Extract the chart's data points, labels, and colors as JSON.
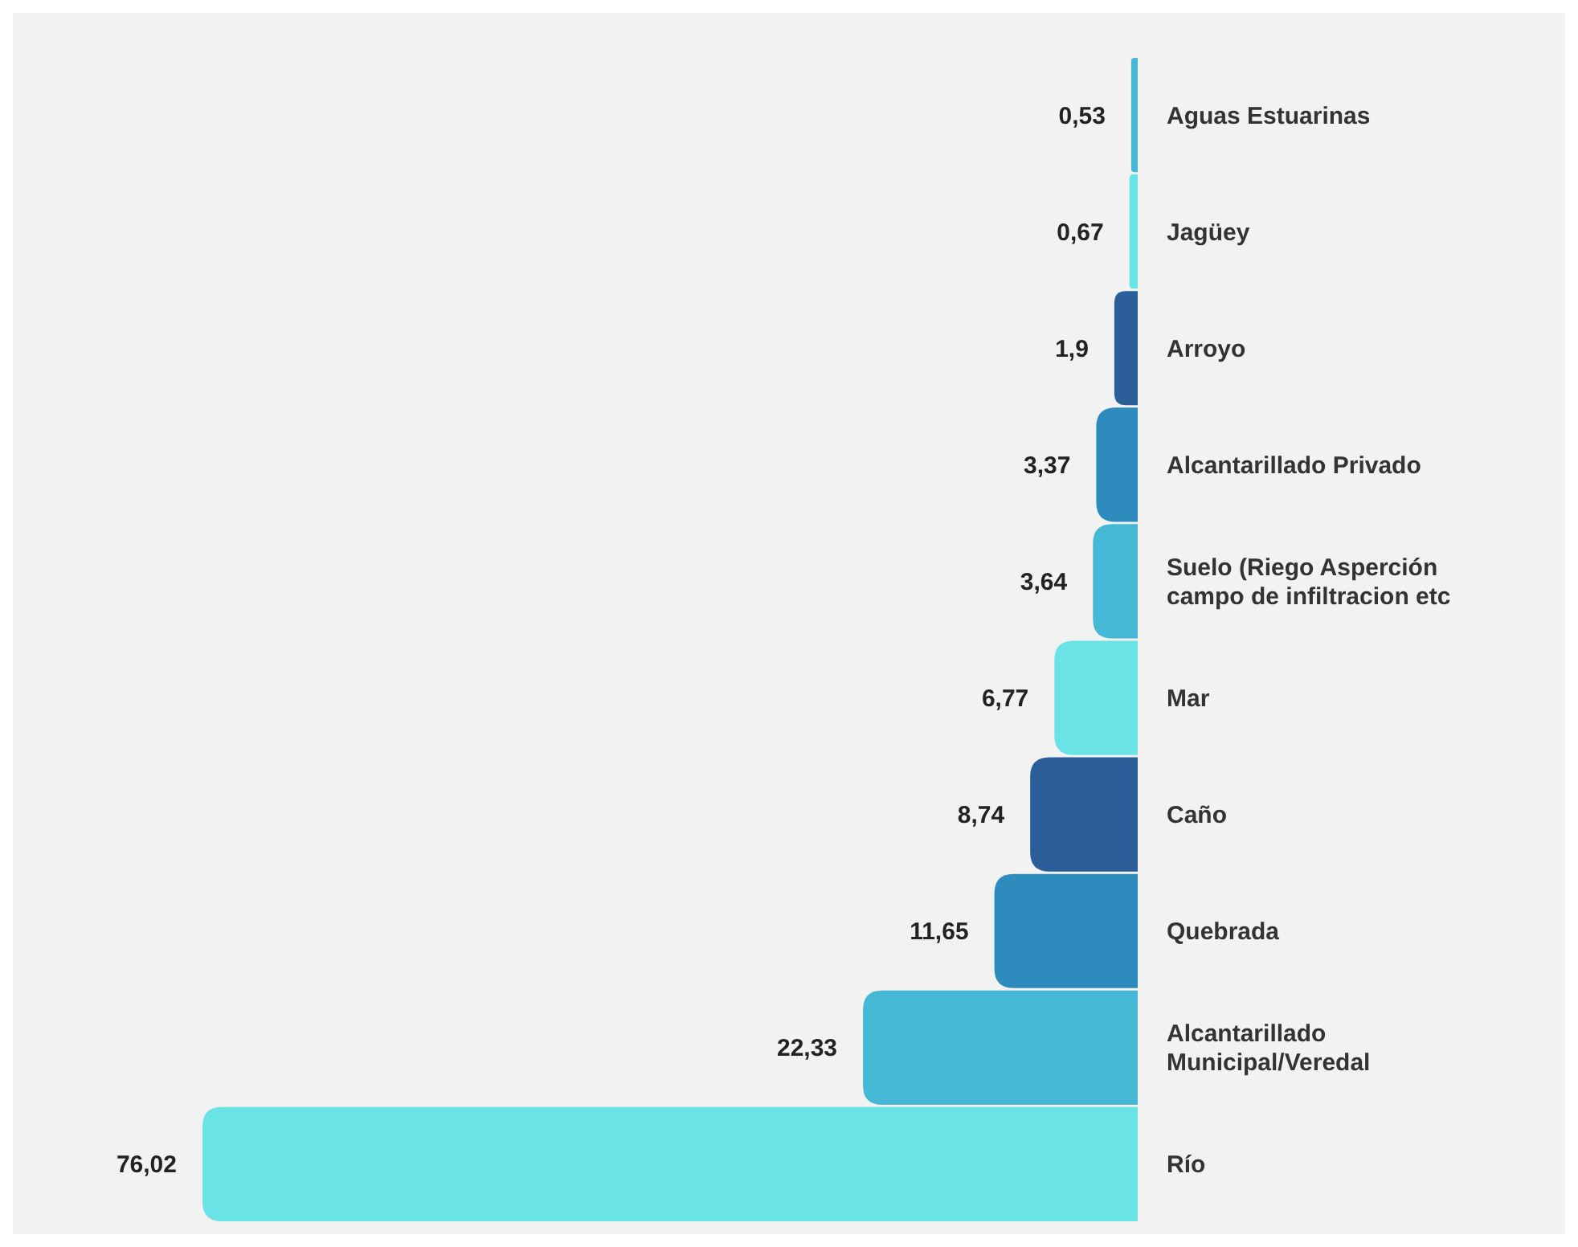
{
  "chart_data": {
    "type": "bar",
    "orientation": "horizontal",
    "categories": [
      "Aguas Estuarinas",
      "Jagüey",
      "Arroyo",
      "Alcantarillado Privado",
      "Suelo (Riego Asperción campo de infiltracion etc",
      "Mar",
      "Caño",
      "Quebrada",
      "Alcantarillado Municipal/Veredal",
      "Río"
    ],
    "values": [
      0.53,
      0.67,
      1.9,
      3.37,
      3.64,
      6.77,
      8.74,
      11.65,
      22.33,
      76.02
    ],
    "value_labels": [
      "0,53",
      "0,67",
      "1,9",
      "3,37",
      "3,64",
      "6,77",
      "8,74",
      "11,65",
      "22,33",
      "76,02"
    ],
    "colors": [
      "#45b8d6",
      "#6ae3e6",
      "#2c5f9a",
      "#2e8bbd",
      "#45b8d6",
      "#6ae3e6",
      "#2c5f9a",
      "#2e8bbd",
      "#45b8d6",
      "#6ae3e6"
    ]
  }
}
